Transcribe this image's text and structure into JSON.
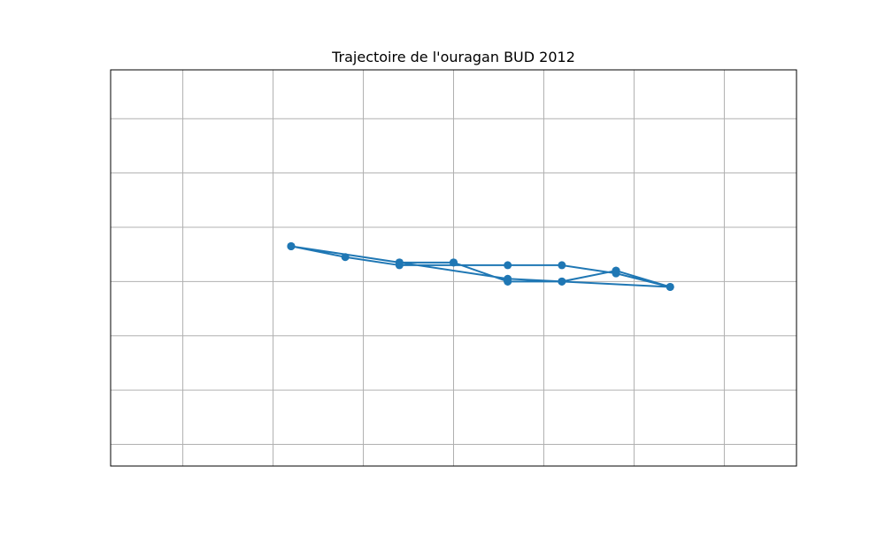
{
  "chart_data": {
    "type": "line",
    "title": "Trajectoire de l'ouragan BUD 2012",
    "xlabel": "",
    "ylabel": "",
    "xlim": [
      -106.8,
      -99.2
    ],
    "ylim": [
      11.6,
      18.9
    ],
    "xgrid": [
      -106,
      -105,
      -104,
      -103,
      -102,
      -101,
      -100
    ],
    "ygrid": [
      12,
      13,
      14,
      15,
      16,
      17,
      18
    ],
    "grid": true,
    "legend": "none",
    "series": [
      {
        "color": "#1f77b4",
        "marker": "circle",
        "points": [
          {
            "x": -104.8,
            "y": 15.65
          },
          {
            "x": -103.6,
            "y": 15.35
          },
          {
            "x": -103.0,
            "y": 15.35
          },
          {
            "x": -102.4,
            "y": 15.0
          },
          {
            "x": -101.8,
            "y": 15.0
          },
          {
            "x": -101.2,
            "y": 15.2
          },
          {
            "x": -100.6,
            "y": 14.9
          },
          {
            "x": -101.2,
            "y": 15.2
          },
          {
            "x": -101.8,
            "y": 15.0
          },
          {
            "x": -102.4,
            "y": 15.0
          },
          {
            "x": -103.0,
            "y": 15.35
          },
          {
            "x": -103.6,
            "y": 15.35
          },
          {
            "x": -104.8,
            "y": 15.65
          },
          {
            "x": -104.2,
            "y": 15.45
          },
          {
            "x": -103.6,
            "y": 15.3
          },
          {
            "x": -102.4,
            "y": 15.3
          },
          {
            "x": -101.8,
            "y": 15.3
          },
          {
            "x": -101.2,
            "y": 15.15
          },
          {
            "x": -100.6,
            "y": 14.9
          },
          {
            "x": -102.4,
            "y": 15.05
          },
          {
            "x": -104.8,
            "y": 15.65
          }
        ]
      }
    ]
  }
}
